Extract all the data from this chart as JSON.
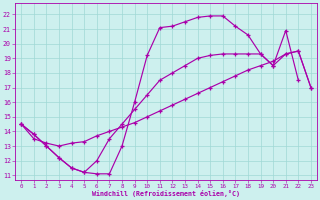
{
  "bg_color": "#cdf0ee",
  "grid_color": "#a0d8d5",
  "line_color": "#aa00aa",
  "xlabel": "Windchill (Refroidissement éolien,°C)",
  "xlim": [
    -0.5,
    23.5
  ],
  "ylim": [
    10.7,
    22.8
  ],
  "xticks": [
    0,
    1,
    2,
    3,
    4,
    5,
    6,
    7,
    8,
    9,
    10,
    11,
    12,
    13,
    14,
    15,
    16,
    17,
    18,
    19,
    20,
    21,
    22,
    23
  ],
  "yticks": [
    11,
    12,
    13,
    14,
    15,
    16,
    17,
    18,
    19,
    20,
    21,
    22
  ],
  "line1_x": [
    0,
    1,
    2,
    3,
    4,
    5,
    6,
    7,
    8,
    9,
    10,
    11,
    12,
    13,
    14,
    15,
    16,
    17,
    18,
    19,
    20,
    21,
    22
  ],
  "line1_y": [
    14.5,
    13.8,
    13.0,
    12.2,
    11.5,
    11.2,
    11.1,
    11.1,
    13.0,
    16.0,
    19.2,
    21.1,
    21.2,
    21.5,
    21.8,
    21.9,
    21.9,
    21.2,
    20.6,
    19.3,
    18.5,
    20.9,
    17.5
  ],
  "line2_x": [
    0,
    1,
    2,
    3,
    4,
    5,
    6,
    7,
    8,
    9,
    10,
    11,
    12,
    13,
    14,
    15,
    16,
    17,
    18,
    19,
    20,
    21,
    22,
    23
  ],
  "line2_y": [
    14.5,
    13.5,
    13.2,
    13.0,
    13.2,
    13.3,
    13.7,
    14.0,
    14.3,
    14.6,
    15.0,
    15.4,
    15.8,
    16.2,
    16.6,
    17.0,
    17.4,
    17.8,
    18.2,
    18.5,
    18.8,
    19.3,
    19.5,
    17.0
  ],
  "line3_x": [
    0,
    1,
    2,
    3,
    4,
    5,
    6,
    7,
    8,
    9,
    10,
    11,
    12,
    13,
    14,
    15,
    16,
    17,
    18,
    19,
    20,
    21,
    22,
    23
  ],
  "line3_y": [
    14.5,
    13.8,
    13.0,
    12.2,
    11.5,
    11.2,
    12.0,
    13.5,
    14.5,
    15.5,
    16.5,
    17.5,
    18.0,
    18.5,
    19.0,
    19.2,
    19.3,
    19.3,
    19.3,
    19.3,
    18.5,
    19.3,
    19.5,
    17.0
  ]
}
